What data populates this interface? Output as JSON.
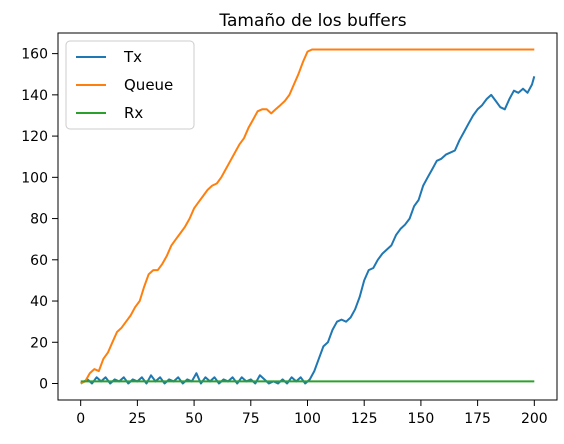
{
  "chart_data": {
    "type": "line",
    "title": "Tamaño de los buffers",
    "xlabel": "",
    "ylabel": "",
    "xlim": [
      -10,
      210
    ],
    "ylim": [
      -8,
      170
    ],
    "xticks": [
      0,
      25,
      50,
      75,
      100,
      125,
      150,
      175,
      200
    ],
    "yticks": [
      0,
      20,
      40,
      60,
      80,
      100,
      120,
      140,
      160
    ],
    "grid": false,
    "legend_position": "top-left",
    "series": [
      {
        "name": "Tx",
        "color": "#1f77b4",
        "points": [
          [
            0,
            0
          ],
          [
            3,
            2
          ],
          [
            5,
            0
          ],
          [
            7,
            3
          ],
          [
            9,
            1
          ],
          [
            11,
            3
          ],
          [
            13,
            0
          ],
          [
            15,
            2
          ],
          [
            17,
            1
          ],
          [
            19,
            3
          ],
          [
            21,
            0
          ],
          [
            23,
            2
          ],
          [
            25,
            1
          ],
          [
            27,
            3
          ],
          [
            29,
            0
          ],
          [
            31,
            4
          ],
          [
            33,
            1
          ],
          [
            35,
            3
          ],
          [
            37,
            0
          ],
          [
            39,
            2
          ],
          [
            41,
            1
          ],
          [
            43,
            3
          ],
          [
            45,
            0
          ],
          [
            47,
            2
          ],
          [
            49,
            1
          ],
          [
            51,
            5
          ],
          [
            53,
            0
          ],
          [
            55,
            3
          ],
          [
            57,
            1
          ],
          [
            59,
            3
          ],
          [
            61,
            0
          ],
          [
            63,
            2
          ],
          [
            65,
            1
          ],
          [
            67,
            3
          ],
          [
            69,
            0
          ],
          [
            71,
            3
          ],
          [
            73,
            1
          ],
          [
            75,
            2
          ],
          [
            77,
            0
          ],
          [
            79,
            4
          ],
          [
            81,
            2
          ],
          [
            83,
            0
          ],
          [
            85,
            1
          ],
          [
            87,
            0
          ],
          [
            89,
            2
          ],
          [
            91,
            0
          ],
          [
            93,
            3
          ],
          [
            95,
            1
          ],
          [
            97,
            3
          ],
          [
            99,
            0
          ],
          [
            101,
            2
          ],
          [
            103,
            6
          ],
          [
            105,
            12
          ],
          [
            107,
            18
          ],
          [
            109,
            20
          ],
          [
            111,
            26
          ],
          [
            113,
            30
          ],
          [
            115,
            31
          ],
          [
            117,
            30
          ],
          [
            119,
            32
          ],
          [
            121,
            36
          ],
          [
            123,
            42
          ],
          [
            125,
            50
          ],
          [
            127,
            55
          ],
          [
            129,
            56
          ],
          [
            131,
            60
          ],
          [
            133,
            63
          ],
          [
            135,
            65
          ],
          [
            137,
            67
          ],
          [
            139,
            72
          ],
          [
            141,
            75
          ],
          [
            143,
            77
          ],
          [
            145,
            80
          ],
          [
            147,
            86
          ],
          [
            149,
            89
          ],
          [
            151,
            96
          ],
          [
            153,
            100
          ],
          [
            155,
            104
          ],
          [
            157,
            108
          ],
          [
            159,
            109
          ],
          [
            161,
            111
          ],
          [
            163,
            112
          ],
          [
            165,
            113
          ],
          [
            167,
            118
          ],
          [
            169,
            122
          ],
          [
            171,
            126
          ],
          [
            173,
            130
          ],
          [
            175,
            133
          ],
          [
            177,
            135
          ],
          [
            179,
            138
          ],
          [
            181,
            140
          ],
          [
            183,
            137
          ],
          [
            185,
            134
          ],
          [
            187,
            133
          ],
          [
            189,
            138
          ],
          [
            191,
            142
          ],
          [
            193,
            141
          ],
          [
            195,
            143
          ],
          [
            197,
            141
          ],
          [
            199,
            145
          ],
          [
            200,
            149
          ]
        ]
      },
      {
        "name": "Queue",
        "color": "#ff7f0e",
        "points": [
          [
            0,
            0
          ],
          [
            2,
            1
          ],
          [
            4,
            5
          ],
          [
            6,
            7
          ],
          [
            8,
            6
          ],
          [
            10,
            12
          ],
          [
            12,
            15
          ],
          [
            14,
            20
          ],
          [
            16,
            25
          ],
          [
            18,
            27
          ],
          [
            20,
            30
          ],
          [
            22,
            33
          ],
          [
            24,
            37
          ],
          [
            26,
            40
          ],
          [
            28,
            47
          ],
          [
            30,
            53
          ],
          [
            32,
            55
          ],
          [
            34,
            55
          ],
          [
            36,
            58
          ],
          [
            38,
            62
          ],
          [
            40,
            67
          ],
          [
            42,
            70
          ],
          [
            44,
            73
          ],
          [
            46,
            76
          ],
          [
            48,
            80
          ],
          [
            50,
            85
          ],
          [
            52,
            88
          ],
          [
            54,
            91
          ],
          [
            56,
            94
          ],
          [
            58,
            96
          ],
          [
            60,
            97
          ],
          [
            62,
            100
          ],
          [
            64,
            104
          ],
          [
            66,
            108
          ],
          [
            68,
            112
          ],
          [
            70,
            116
          ],
          [
            72,
            119
          ],
          [
            74,
            124
          ],
          [
            76,
            128
          ],
          [
            78,
            132
          ],
          [
            80,
            133
          ],
          [
            82,
            133
          ],
          [
            84,
            131
          ],
          [
            86,
            133
          ],
          [
            88,
            135
          ],
          [
            90,
            137
          ],
          [
            92,
            140
          ],
          [
            94,
            145
          ],
          [
            96,
            150
          ],
          [
            98,
            156
          ],
          [
            100,
            161
          ],
          [
            102,
            162
          ],
          [
            110,
            162
          ],
          [
            120,
            162
          ],
          [
            130,
            162
          ],
          [
            140,
            162
          ],
          [
            150,
            162
          ],
          [
            160,
            162
          ],
          [
            170,
            162
          ],
          [
            180,
            162
          ],
          [
            190,
            162
          ],
          [
            200,
            162
          ]
        ]
      },
      {
        "name": "Rx",
        "color": "#2ca02c",
        "points": [
          [
            0,
            1
          ],
          [
            200,
            1
          ]
        ]
      }
    ]
  }
}
